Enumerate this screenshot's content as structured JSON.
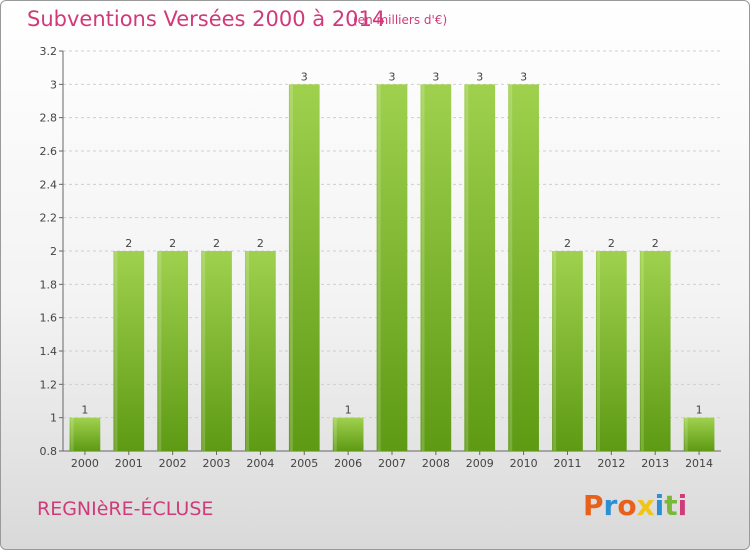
{
  "header": {
    "title": "Subventions Versées 2000 à 2014",
    "unit": "(en milliers d'€)"
  },
  "footer": {
    "commune": "REGNIèRE-ÉCLUSE",
    "logo_text": "Proxiti",
    "logo_colors": [
      "#e8611a",
      "#2a8fd4",
      "#e8611a",
      "#f0c419",
      "#2a8fd4",
      "#7ab83a",
      "#d13a7a"
    ]
  },
  "colors": {
    "bar_light": "#9fd14e",
    "bar_dark": "#5e9a14",
    "axis": "#666666",
    "grid": "#cfcfcf",
    "text": "#444444"
  },
  "chart_data": {
    "type": "bar",
    "categories": [
      "2000",
      "2001",
      "2002",
      "2003",
      "2004",
      "2005",
      "2006",
      "2007",
      "2008",
      "2009",
      "2010",
      "2011",
      "2012",
      "2013",
      "2014"
    ],
    "values": [
      1,
      2,
      2,
      2,
      2,
      3,
      1,
      3,
      3,
      3,
      3,
      2,
      2,
      2,
      1
    ],
    "data_labels": [
      "1",
      "2",
      "2",
      "2",
      "2",
      "3",
      "1",
      "3",
      "3",
      "3",
      "3",
      "2",
      "2",
      "2",
      "1"
    ],
    "ylim": [
      0.8,
      3.2
    ],
    "yticks": [
      0.8,
      1,
      1.2,
      1.4,
      1.6,
      1.8,
      2,
      2.2,
      2.4,
      2.6,
      2.8,
      3,
      3.2
    ],
    "ytick_labels": [
      "0.8",
      "1",
      "1.2",
      "1.4",
      "1.6",
      "1.8",
      "2",
      "2.2",
      "2.4",
      "2.6",
      "2.8",
      "3",
      "3.2"
    ],
    "grid": "horizontal dashed",
    "title": "Subventions Versées 2000 à 2014",
    "xlabel": "",
    "ylabel": ""
  }
}
